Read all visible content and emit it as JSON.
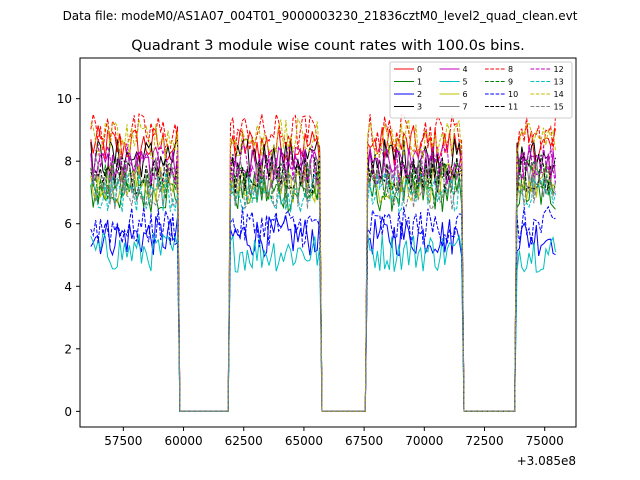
{
  "suptitle": "Data file: modeM0/AS1A07_004T01_9000003230_21836cztM0_level2_quad_clean.evt",
  "chart_data": {
    "type": "line",
    "title": "Quadrant 3 module wise count rates with 100.0s bins.",
    "xlabel": "",
    "ylabel": "",
    "x_offset_label": "+3.085e8",
    "xlim": [
      55700,
      76300
    ],
    "ylim": [
      -0.5,
      11.3
    ],
    "xticks": [
      57500,
      60000,
      62500,
      65000,
      67500,
      70000,
      72500,
      75000
    ],
    "xtick_labels": [
      "57500",
      "60000",
      "62500",
      "65000",
      "67500",
      "70000",
      "72500",
      "75000"
    ],
    "yticks": [
      0,
      2,
      4,
      6,
      8,
      10
    ],
    "ytick_labels": [
      "0",
      "2",
      "4",
      "6",
      "8",
      "10"
    ],
    "bin_seconds": 100,
    "on_intervals": [
      [
        56150,
        59750
      ],
      [
        61950,
        65650
      ],
      [
        67650,
        71550
      ],
      [
        73800,
        75450
      ]
    ],
    "off_value": 0,
    "legend_position": "upper right",
    "series": [
      {
        "name": "0",
        "color": "#ff0000",
        "dash": "solid",
        "level": 8.5
      },
      {
        "name": "1",
        "color": "#008000",
        "dash": "solid",
        "level": 7.0
      },
      {
        "name": "2",
        "color": "#0000ff",
        "dash": "solid",
        "level": 5.6
      },
      {
        "name": "3",
        "color": "#000000",
        "dash": "solid",
        "level": 8.1
      },
      {
        "name": "4",
        "color": "#bf00bf",
        "dash": "solid",
        "level": 7.8
      },
      {
        "name": "5",
        "color": "#00bfbf",
        "dash": "solid",
        "level": 5.1
      },
      {
        "name": "6",
        "color": "#bfbf00",
        "dash": "solid",
        "level": 7.3
      },
      {
        "name": "7",
        "color": "#808080",
        "dash": "solid",
        "level": 7.5
      },
      {
        "name": "8",
        "color": "#ff0000",
        "dash": "dashed",
        "level": 8.9
      },
      {
        "name": "9",
        "color": "#008000",
        "dash": "dashed",
        "level": 7.4
      },
      {
        "name": "10",
        "color": "#0000ff",
        "dash": "dashed",
        "level": 5.9
      },
      {
        "name": "11",
        "color": "#000000",
        "dash": "dashed",
        "level": 7.6
      },
      {
        "name": "12",
        "color": "#bf00bf",
        "dash": "dashed",
        "level": 7.9
      },
      {
        "name": "13",
        "color": "#00bfbf",
        "dash": "dashed",
        "level": 7.0
      },
      {
        "name": "14",
        "color": "#bfbf00",
        "dash": "dashed",
        "level": 8.7
      },
      {
        "name": "15",
        "color": "#808080",
        "dash": "dashed",
        "level": 7.1
      }
    ]
  }
}
